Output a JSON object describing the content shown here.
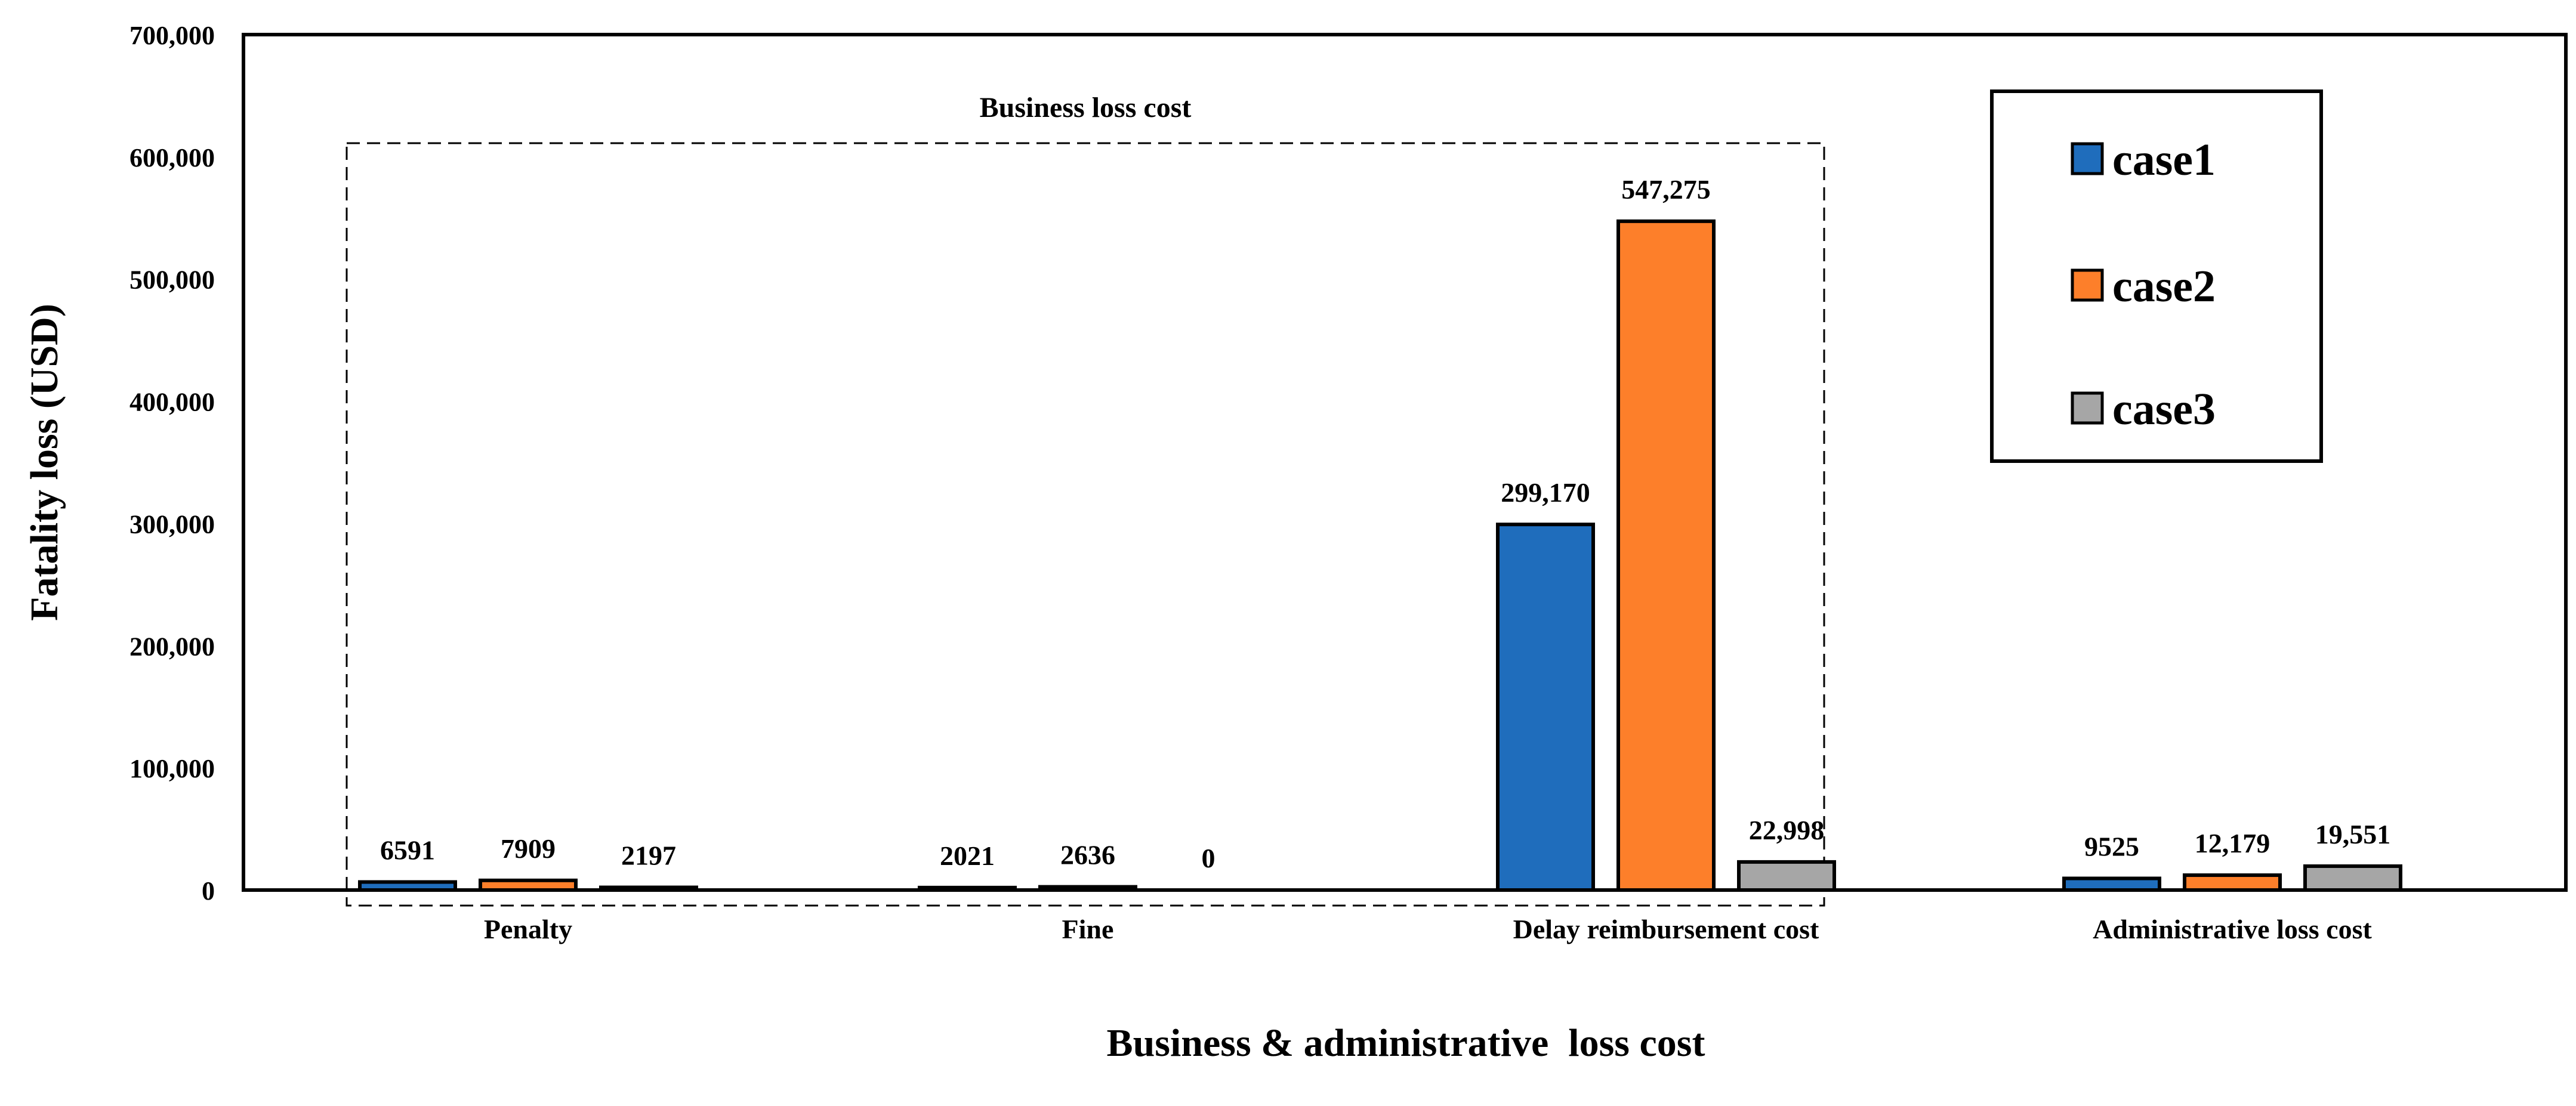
{
  "chart_data": {
    "type": "bar",
    "title": "",
    "xlabel": "Business & administrative  loss cost",
    "ylabel": "Fatality loss (USD)",
    "ylim": [
      0,
      700000
    ],
    "yticks": [
      0,
      100000,
      200000,
      300000,
      400000,
      500000,
      600000,
      700000
    ],
    "ytick_labels": [
      "0",
      "100,000",
      "200,000",
      "300,000",
      "400,000",
      "500,000",
      "600,000",
      "700,000"
    ],
    "categories": [
      "Penalty",
      "Fine",
      "Delay reimbursement cost",
      "Administrative loss cost"
    ],
    "series": [
      {
        "name": "case1",
        "color": "#1f6dbc",
        "values": [
          6591,
          2021,
          299170,
          9525
        ],
        "labels": [
          "6591",
          "2021",
          "299,170",
          "9525"
        ]
      },
      {
        "name": "case2",
        "color": "#fd7f2a",
        "values": [
          7909,
          2636,
          547275,
          12179
        ],
        "labels": [
          "7909",
          "2636",
          "547,275",
          "12,179"
        ]
      },
      {
        "name": "case3",
        "color": "#a6a6a6",
        "values": [
          2197,
          0,
          22998,
          19551
        ],
        "labels": [
          "2197",
          "0",
          "22,998",
          "19,551"
        ]
      }
    ],
    "group_box": {
      "label": "Business loss cost",
      "categories": [
        "Penalty",
        "Fine",
        "Delay reimbursement cost"
      ]
    },
    "legend_position": "top-right",
    "grid": false
  }
}
